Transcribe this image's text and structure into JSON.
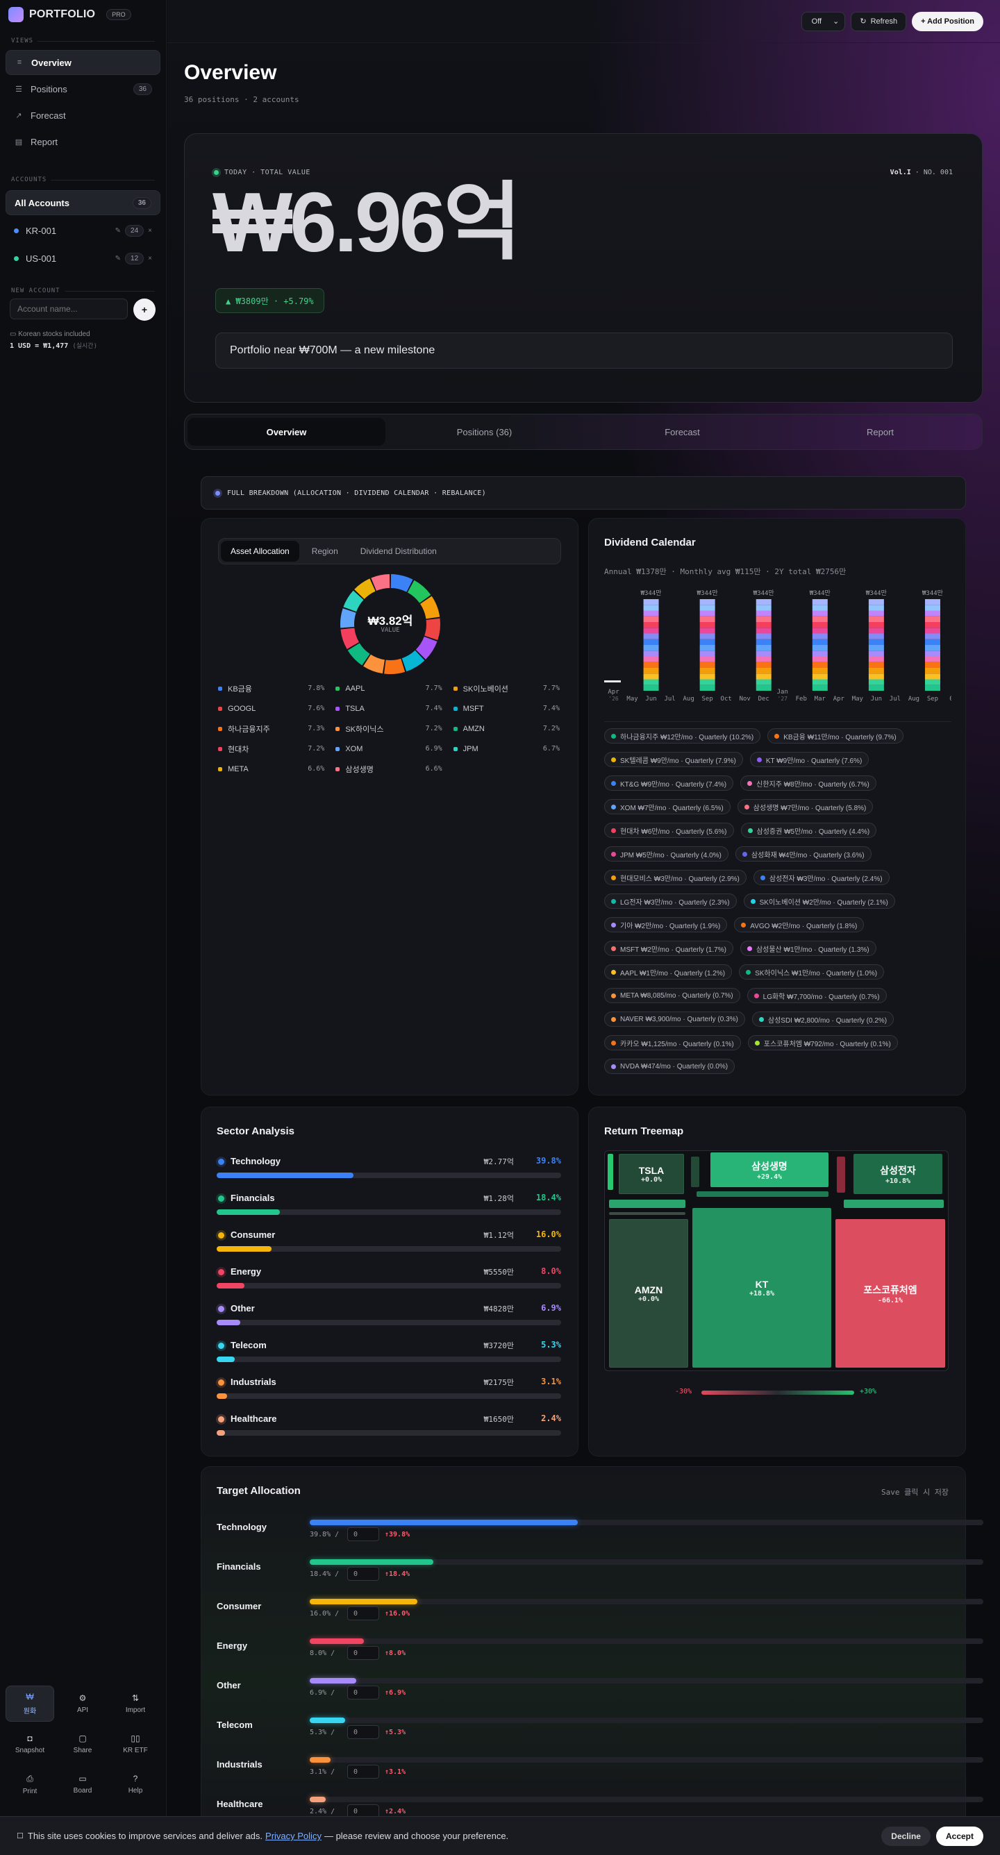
{
  "sidebar": {
    "brand": "PORTFOLIO",
    "badge": "PRO",
    "views_label": "VIEWS",
    "nav": [
      {
        "label": "Overview",
        "icon": "list-icon"
      },
      {
        "label": "Positions",
        "icon": "rows-icon",
        "count": "36"
      },
      {
        "label": "Forecast",
        "icon": "trend-icon"
      },
      {
        "label": "Report",
        "icon": "doc-icon"
      }
    ],
    "accounts_label": "ACCOUNTS",
    "all_accounts": {
      "label": "All Accounts",
      "count": "36"
    },
    "accounts": [
      {
        "name": "KR-001",
        "count": "24",
        "color": "#4c8dff"
      },
      {
        "name": "US-001",
        "count": "12",
        "color": "#34d39b"
      }
    ],
    "new_account_label": "NEW ACCOUNT",
    "new_account_placeholder": "Account name...",
    "add_label": "+",
    "fx_note": "Korean stocks included",
    "fx_rate": "1 USD = ₩1,477",
    "fx_live": "(실시간)",
    "tools": [
      {
        "label": "원화",
        "icon": "won-icon",
        "active": true
      },
      {
        "label": "API",
        "icon": "gear-icon"
      },
      {
        "label": "Import",
        "icon": "import-icon"
      },
      {
        "label": "Snapshot",
        "icon": "camera-icon"
      },
      {
        "label": "Share",
        "icon": "share-icon"
      },
      {
        "label": "KR ETF",
        "icon": "grid-icon"
      },
      {
        "label": "Print",
        "icon": "print-icon"
      },
      {
        "label": "Board",
        "icon": "chat-icon"
      },
      {
        "label": "Help",
        "icon": "help-icon"
      }
    ]
  },
  "topbar": {
    "select_value": "Off",
    "refresh_label": "Refresh",
    "add_label": "+ Add Position"
  },
  "header": {
    "title": "Overview",
    "subtitle": "36 positions · 2 accounts"
  },
  "hero": {
    "tag": "TODAY · TOTAL VALUE",
    "vol": "Vol.I",
    "issue": "NO. 001",
    "value": "₩6.96억",
    "change": "▲ ₩3809만 · +5.79%",
    "message": "Portfolio near ₩700M — a new milestone"
  },
  "tabs": [
    "Overview",
    "Positions (36)",
    "Forecast",
    "Report"
  ],
  "banner": "FULL BREAKDOWN (ALLOCATION · DIVIDEND CALENDAR · REBALANCE)",
  "allocation": {
    "segments": [
      "Asset Allocation",
      "Region",
      "Dividend Distribution"
    ],
    "center_value": "₩3.82억",
    "center_label": "VALUE",
    "items": [
      {
        "name": "KB금융",
        "pct": "7.8%",
        "value": 7.8,
        "color": "#3b82f6"
      },
      {
        "name": "AAPL",
        "pct": "7.7%",
        "value": 7.7,
        "color": "#22c55e"
      },
      {
        "name": "SK이노베이션",
        "pct": "7.7%",
        "value": 7.7,
        "color": "#f59e0b"
      },
      {
        "name": "GOOGL",
        "pct": "7.6%",
        "value": 7.6,
        "color": "#ef4444"
      },
      {
        "name": "TSLA",
        "pct": "7.4%",
        "value": 7.4,
        "color": "#a855f7"
      },
      {
        "name": "MSFT",
        "pct": "7.4%",
        "value": 7.4,
        "color": "#06b6d4"
      },
      {
        "name": "하나금융지주",
        "pct": "7.3%",
        "value": 7.3,
        "color": "#f97316"
      },
      {
        "name": "SK하이닉스",
        "pct": "7.2%",
        "value": 7.2,
        "color": "#fb923c"
      },
      {
        "name": "AMZN",
        "pct": "7.2%",
        "value": 7.2,
        "color": "#10b981"
      },
      {
        "name": "현대차",
        "pct": "7.2%",
        "value": 7.2,
        "color": "#f43f5e"
      },
      {
        "name": "XOM",
        "pct": "6.9%",
        "value": 6.9,
        "color": "#60a5fa"
      },
      {
        "name": "JPM",
        "pct": "6.7%",
        "value": 6.7,
        "color": "#2dd4bf"
      },
      {
        "name": "META",
        "pct": "6.6%",
        "value": 6.6,
        "color": "#eab308"
      },
      {
        "name": "삼성생명",
        "pct": "6.6%",
        "value": 6.6,
        "color": "#fb7185"
      }
    ]
  },
  "dividend": {
    "title": "Dividend Calendar",
    "subtitle": "Annual ₩1378만 · Monthly avg ₩115만 · 2Y total ₩2756만",
    "bar_label": "₩344만",
    "months": [
      "Apr '26",
      "May",
      "Jun",
      "Jul",
      "Aug",
      "Sep",
      "Oct",
      "Nov",
      "Dec",
      "Jan '27",
      "Feb",
      "Mar",
      "Apr",
      "May",
      "Jun",
      "Jul",
      "Aug",
      "Sep",
      "0"
    ],
    "chips": [
      {
        "text": "하나금융지주 ₩12만/mo · Quarterly (10.2%)",
        "color": "#10b981"
      },
      {
        "text": "KB금융 ₩11만/mo · Quarterly (9.7%)",
        "color": "#f97316"
      },
      {
        "text": "SK텔레콤 ₩9만/mo · Quarterly (7.9%)",
        "color": "#eab308"
      },
      {
        "text": "KT ₩9만/mo · Quarterly (7.6%)",
        "color": "#8b5cf6"
      },
      {
        "text": "KT&G ₩9만/mo · Quarterly (7.4%)",
        "color": "#3b82f6"
      },
      {
        "text": "신한지주 ₩8만/mo · Quarterly (6.7%)",
        "color": "#f472b6"
      },
      {
        "text": "XOM ₩7만/mo · Quarterly (6.5%)",
        "color": "#60a5fa"
      },
      {
        "text": "삼성생명 ₩7만/mo · Quarterly (5.8%)",
        "color": "#fb7185"
      },
      {
        "text": "현대차 ₩6만/mo · Quarterly (5.6%)",
        "color": "#f43f5e"
      },
      {
        "text": "삼성증권 ₩5만/mo · Quarterly (4.4%)",
        "color": "#34d399"
      },
      {
        "text": "JPM ₩5만/mo · Quarterly (4.0%)",
        "color": "#ec4899"
      },
      {
        "text": "삼성화재 ₩4만/mo · Quarterly (3.6%)",
        "color": "#6366f1"
      },
      {
        "text": "현대모비스 ₩3만/mo · Quarterly (2.9%)",
        "color": "#f59e0b"
      },
      {
        "text": "삼성전자 ₩3만/mo · Quarterly (2.4%)",
        "color": "#3b82f6"
      },
      {
        "text": "LG전자 ₩3만/mo · Quarterly (2.3%)",
        "color": "#14b8a6"
      },
      {
        "text": "SK이노베이션 ₩2만/mo · Quarterly (2.1%)",
        "color": "#22d3ee"
      },
      {
        "text": "기아 ₩2만/mo · Quarterly (1.9%)",
        "color": "#a78bfa"
      },
      {
        "text": "AVGO ₩2만/mo · Quarterly (1.8%)",
        "color": "#f97316"
      },
      {
        "text": "MSFT ₩2만/mo · Quarterly (1.7%)",
        "color": "#f87171"
      },
      {
        "text": "삼성물산 ₩1만/mo · Quarterly (1.3%)",
        "color": "#e879f9"
      },
      {
        "text": "AAPL ₩1만/mo · Quarterly (1.2%)",
        "color": "#fbbf24"
      },
      {
        "text": "SK하이닉스 ₩1만/mo · Quarterly (1.0%)",
        "color": "#10b981"
      },
      {
        "text": "META ₩8,085/mo · Quarterly (0.7%)",
        "color": "#fb923c"
      },
      {
        "text": "LG화학 ₩7,700/mo · Quarterly (0.7%)",
        "color": "#ec4899"
      },
      {
        "text": "NAVER ₩3,900/mo · Quarterly (0.3%)",
        "color": "#fb923c"
      },
      {
        "text": "삼성SDI ₩2,800/mo · Quarterly (0.2%)",
        "color": "#2dd4bf"
      },
      {
        "text": "카카오 ₩1,125/mo · Quarterly (0.1%)",
        "color": "#f97316"
      },
      {
        "text": "포스코퓨처엠 ₩792/mo · Quarterly (0.1%)",
        "color": "#a3e635"
      },
      {
        "text": "NVDA ₩474/mo · Quarterly (0.0%)",
        "color": "#a78bfa"
      }
    ]
  },
  "sector": {
    "title": "Sector Analysis",
    "rows": [
      {
        "name": "Technology",
        "amount": "₩2.77억",
        "pct": "39.8%",
        "value": 39.8,
        "color": "#3b82f6"
      },
      {
        "name": "Financials",
        "amount": "₩1.28억",
        "pct": "18.4%",
        "value": 18.4,
        "color": "#22c58b"
      },
      {
        "name": "Consumer",
        "amount": "₩1.12억",
        "pct": "16.0%",
        "value": 16.0,
        "color": "#f5b50b"
      },
      {
        "name": "Energy",
        "amount": "₩5550만",
        "pct": "8.0%",
        "value": 8.0,
        "color": "#f04664"
      },
      {
        "name": "Other",
        "amount": "₩4828만",
        "pct": "6.9%",
        "value": 6.9,
        "color": "#a78bfa"
      },
      {
        "name": "Telecom",
        "amount": "₩3720만",
        "pct": "5.3%",
        "value": 5.3,
        "color": "#38d6f0"
      },
      {
        "name": "Industrials",
        "amount": "₩2175만",
        "pct": "3.1%",
        "value": 3.1,
        "color": "#fb923c"
      },
      {
        "name": "Healthcare",
        "amount": "₩1650만",
        "pct": "2.4%",
        "value": 2.4,
        "color": "#f4a27c"
      }
    ]
  },
  "treemap": {
    "title": "Return Treemap",
    "tiles": [
      {
        "name": "TSLA",
        "ret": "+0.0%"
      },
      {
        "name": "삼성생명",
        "ret": "+29.4%"
      },
      {
        "name": "삼성전자",
        "ret": "+10.8%"
      },
      {
        "name": "AMZN",
        "ret": "+0.0%"
      },
      {
        "name": "KT",
        "ret": "+18.8%"
      },
      {
        "name": "포스코퓨처엠",
        "ret": "-66.1%"
      }
    ],
    "scale_min": "-30%",
    "scale_max": "+30%"
  },
  "target": {
    "title": "Target Allocation",
    "hint": "Save 클릭 시 저장",
    "rows": [
      {
        "name": "Technology",
        "current": "39.8%",
        "value": 39.8,
        "target": "0",
        "diff": "↑39.8%",
        "color": "#3b82f6"
      },
      {
        "name": "Financials",
        "current": "18.4%",
        "value": 18.4,
        "target": "0",
        "diff": "↑18.4%",
        "color": "#22c58b"
      },
      {
        "name": "Consumer",
        "current": "16.0%",
        "value": 16.0,
        "target": "0",
        "diff": "↑16.0%",
        "color": "#f5b50b"
      },
      {
        "name": "Energy",
        "current": "8.0%",
        "value": 8.0,
        "target": "0",
        "diff": "↑8.0%",
        "color": "#f04664"
      },
      {
        "name": "Other",
        "current": "6.9%",
        "value": 6.9,
        "target": "0",
        "diff": "↑6.9%",
        "color": "#a78bfa"
      },
      {
        "name": "Telecom",
        "current": "5.3%",
        "value": 5.3,
        "target": "0",
        "diff": "↑5.3%",
        "color": "#38d6f0"
      },
      {
        "name": "Industrials",
        "current": "3.1%",
        "value": 3.1,
        "target": "0",
        "diff": "↑3.1%",
        "color": "#fb923c"
      },
      {
        "name": "Healthcare",
        "current": "2.4%",
        "value": 2.4,
        "target": "0",
        "diff": "↑2.4%",
        "color": "#f4a27c"
      }
    ]
  },
  "cookie": {
    "text_before": "This site uses cookies to improve services and deliver ads.",
    "link": "Privacy Policy",
    "text_after": "— please review and choose your preference.",
    "decline": "Decline",
    "accept": "Accept"
  }
}
